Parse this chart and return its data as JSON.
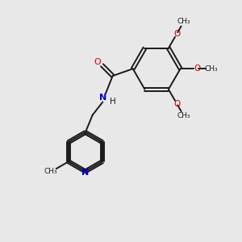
{
  "bg_color": "#e8e8e8",
  "bond_color": "#1a1a1a",
  "n_color": "#0000cc",
  "o_color": "#cc0000",
  "figsize": [
    3.0,
    3.0
  ],
  "dpi": 100,
  "xlim": [
    0,
    10
  ],
  "ylim": [
    0,
    10
  ]
}
